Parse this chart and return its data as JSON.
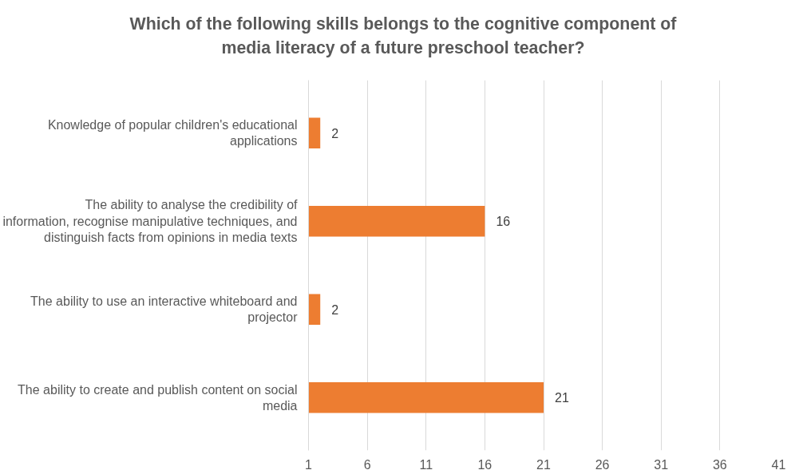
{
  "chart_data": {
    "type": "bar",
    "orientation": "horizontal",
    "title": "Which of the following skills belongs to the cognitive component of media literacy of a future preschool teacher?",
    "categories": [
      "Knowledge of popular children's educational applications",
      "The ability to analyse the credibility of information, recognise manipulative techniques, and distinguish facts from opinions in media texts",
      "The ability to use an interactive whiteboard and projector",
      "The ability to create and publish content on social media"
    ],
    "values": [
      2,
      16,
      2,
      21
    ],
    "color": "#ed7d31",
    "xlim": [
      1,
      41
    ],
    "xticks": [
      1,
      6,
      11,
      16,
      21,
      26,
      31,
      36,
      41
    ],
    "grid": "x",
    "data_labels": true
  }
}
